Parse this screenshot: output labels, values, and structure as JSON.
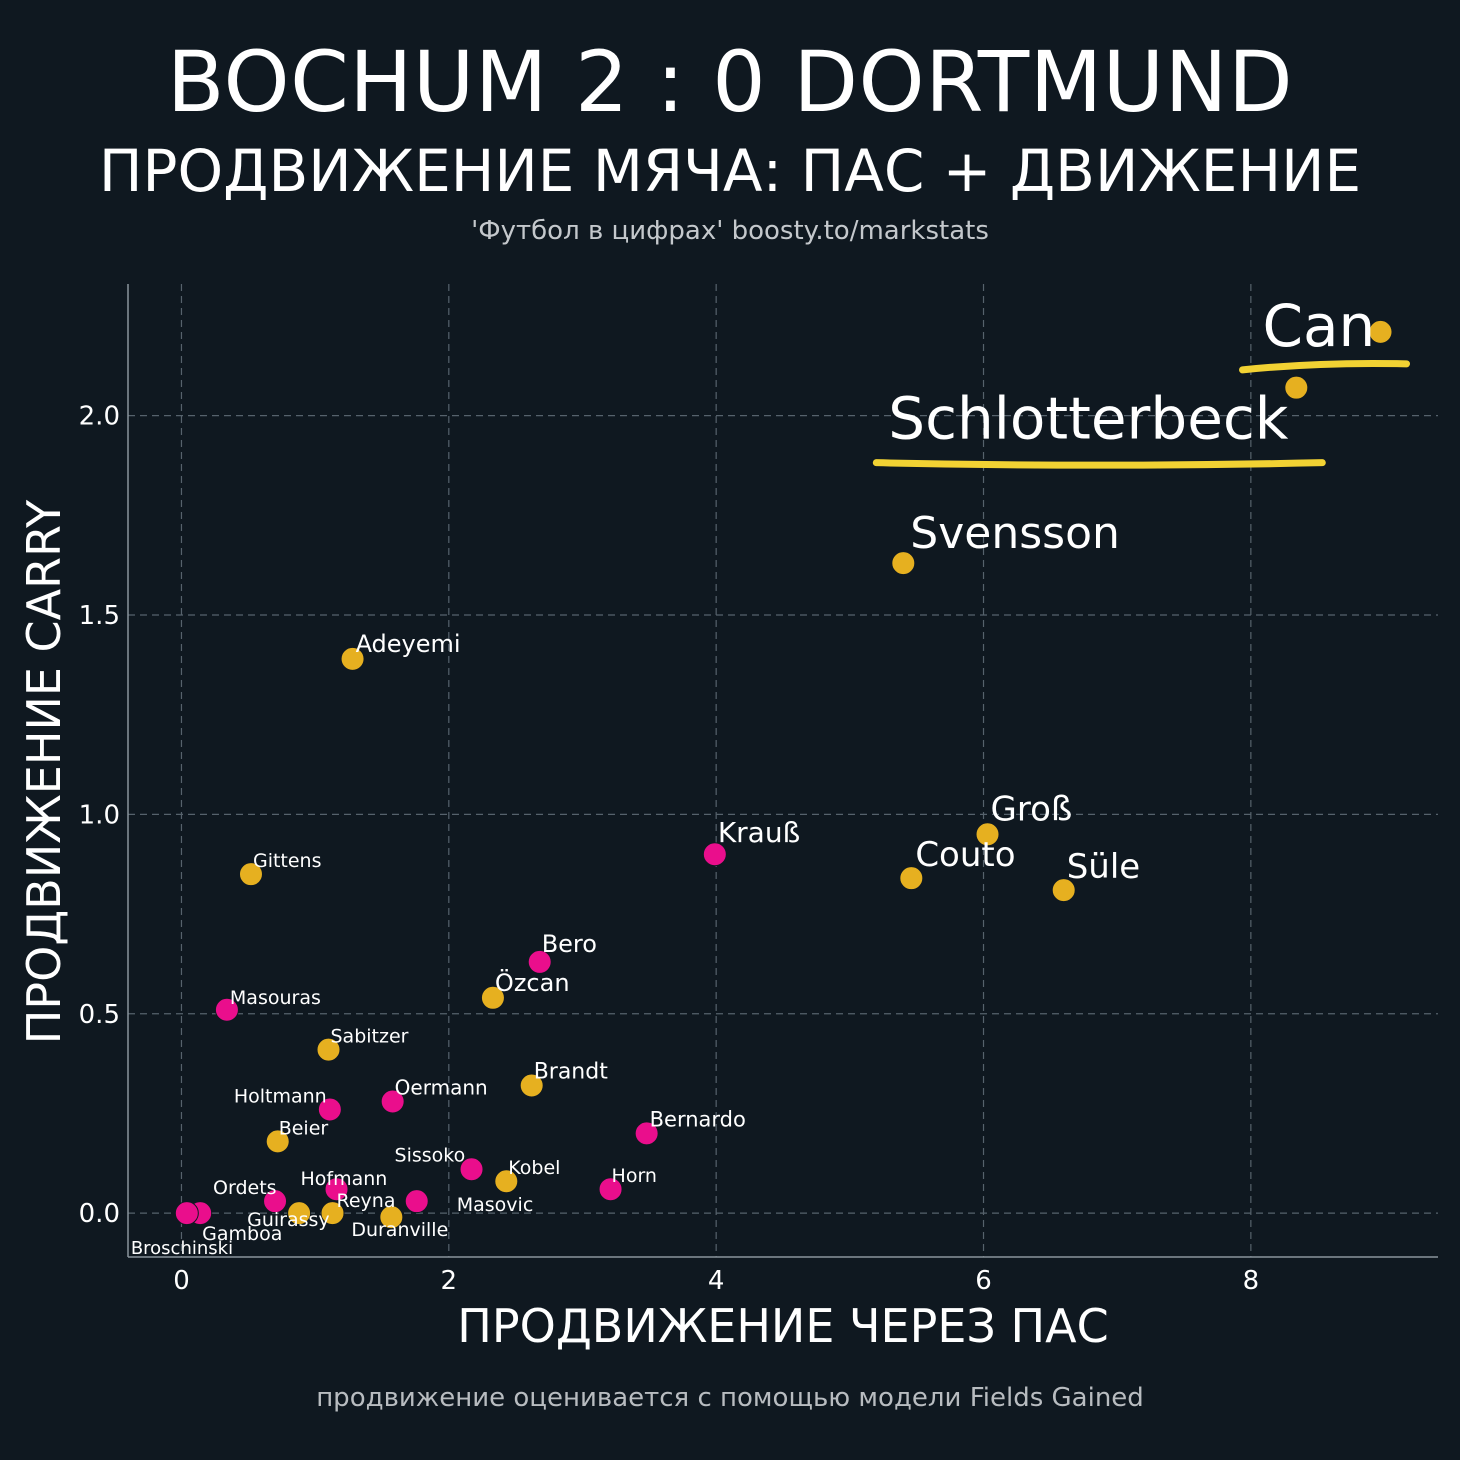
{
  "header": {
    "title": "BOCHUM 2 : 0 DORTMUND",
    "subtitle": "ПРОДВИЖЕНИЕ МЯЧА: ПАС + ДВИЖЕНИЕ",
    "credit": "'Футбол в цифрах' boosty.to/markstats"
  },
  "footer": {
    "note": "продвижение оценивается с помощью модели Fields Gained"
  },
  "colors": {
    "background": "#0f1820",
    "dortmund": "#e6b020",
    "bochum": "#ea0e8c",
    "grid": "#56626c",
    "highlight": "#f2d233"
  },
  "chart_data": {
    "type": "scatter",
    "xlabel": "ПРОДВИЖЕНИЕ ЧЕРЕЗ ПАС",
    "ylabel": "ПРОДВИЖЕНИЕ CARRY",
    "xlim": [
      -0.4,
      9.4
    ],
    "ylim": [
      -0.11,
      2.33
    ],
    "xticks": [
      0,
      2,
      4,
      6,
      8
    ],
    "yticks": [
      0.0,
      0.5,
      1.0,
      1.5,
      2.0
    ],
    "xtick_labels": [
      "0",
      "2",
      "4",
      "6",
      "8"
    ],
    "ytick_labels": [
      "0.0",
      "0.5",
      "1.0",
      "1.5",
      "2.0"
    ],
    "grid": true,
    "series": [
      {
        "team": "dortmund",
        "points": [
          {
            "name": "Can",
            "x": 8.97,
            "y": 2.21
          },
          {
            "name": "Schlotterbeck",
            "x": 8.34,
            "y": 2.07
          },
          {
            "name": "Svensson",
            "x": 5.4,
            "y": 1.63
          },
          {
            "name": "Adeyemi",
            "x": 1.28,
            "y": 1.39
          },
          {
            "name": "Groß",
            "x": 6.03,
            "y": 0.95
          },
          {
            "name": "Couto",
            "x": 5.46,
            "y": 0.84
          },
          {
            "name": "Süle",
            "x": 6.6,
            "y": 0.81
          },
          {
            "name": "Gittens",
            "x": 0.52,
            "y": 0.85
          },
          {
            "name": "Özcan",
            "x": 2.33,
            "y": 0.54
          },
          {
            "name": "Sabitzer",
            "x": 1.1,
            "y": 0.41
          },
          {
            "name": "Brandt",
            "x": 2.62,
            "y": 0.32
          },
          {
            "name": "Beier",
            "x": 0.72,
            "y": 0.18
          },
          {
            "name": "Kobel",
            "x": 2.43,
            "y": 0.08
          },
          {
            "name": "Guirassy",
            "x": 0.88,
            "y": 0.0
          },
          {
            "name": "Reyna",
            "x": 1.13,
            "y": 0.0
          },
          {
            "name": "Duranville",
            "x": 1.57,
            "y": -0.01
          }
        ]
      },
      {
        "team": "bochum",
        "points": [
          {
            "name": "Krauß",
            "x": 3.99,
            "y": 0.9
          },
          {
            "name": "Bero",
            "x": 2.68,
            "y": 0.63
          },
          {
            "name": "Masouras",
            "x": 0.34,
            "y": 0.51
          },
          {
            "name": "Holtmann",
            "x": 1.11,
            "y": 0.26
          },
          {
            "name": "Oermann",
            "x": 1.58,
            "y": 0.28
          },
          {
            "name": "Bernardo",
            "x": 3.48,
            "y": 0.2
          },
          {
            "name": "Sissoko",
            "x": 2.17,
            "y": 0.11
          },
          {
            "name": "Horn",
            "x": 3.21,
            "y": 0.06
          },
          {
            "name": "Hofmann",
            "x": 1.16,
            "y": 0.06
          },
          {
            "name": "Masovic",
            "x": 1.76,
            "y": 0.03
          },
          {
            "name": "Ordets",
            "x": 0.7,
            "y": 0.03
          },
          {
            "name": "Gamboa",
            "x": 0.14,
            "y": 0.0
          },
          {
            "name": "Broschinski",
            "x": 0.04,
            "y": 0.0
          }
        ]
      }
    ],
    "annotations": [
      {
        "name": "Can",
        "highlighted": true,
        "label_size": "xlarge"
      },
      {
        "name": "Schlotterbeck",
        "highlighted": true,
        "label_size": "xlarge"
      },
      {
        "name": "Svensson",
        "label_size": "large"
      },
      {
        "name": "Groß",
        "label_size": "medium"
      },
      {
        "name": "Couto",
        "label_size": "medium"
      },
      {
        "name": "Süle",
        "label_size": "medium"
      },
      {
        "name": "Krauß",
        "label_size": "medium"
      }
    ]
  }
}
